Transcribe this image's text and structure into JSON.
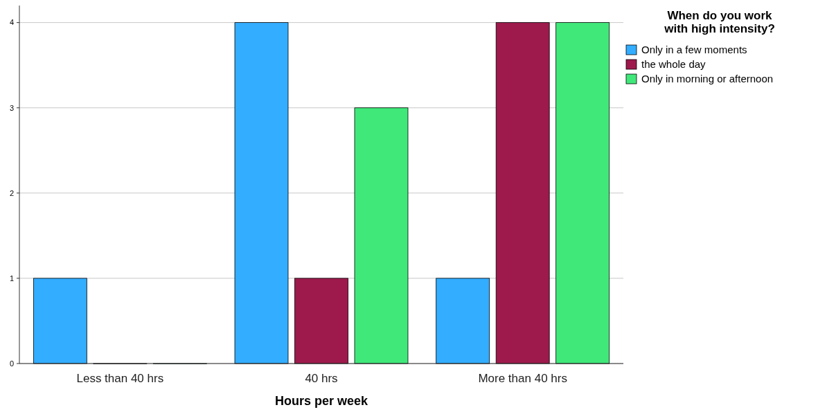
{
  "chart_data": {
    "type": "bar",
    "xlabel": "Hours per week",
    "legend_title": "When do you work with high intensity?",
    "categories": [
      "Less than 40 hrs",
      "40 hrs",
      "More than 40 hrs"
    ],
    "series": [
      {
        "name": "Only in a few moments",
        "color": "#33adff",
        "values": [
          1,
          4,
          1
        ]
      },
      {
        "name": "the whole day",
        "color": "#9e1a4c",
        "values": [
          0,
          1,
          4
        ]
      },
      {
        "name": "Only in morning or afternoon",
        "color": "#40e87a",
        "values": [
          0,
          3,
          4
        ]
      }
    ],
    "ylim": [
      0,
      4.2
    ],
    "yticks": [
      0,
      1,
      2,
      3,
      4
    ],
    "grid": "y",
    "legend": "top right"
  }
}
